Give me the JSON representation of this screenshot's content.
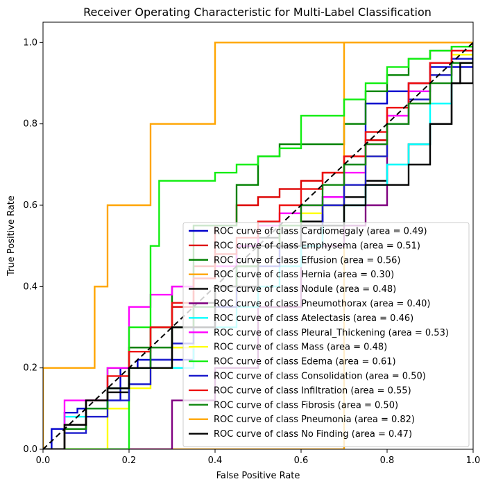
{
  "chart_data": {
    "type": "line",
    "title": "Receiver Operating Characteristic for Multi-Label Classification",
    "xlabel": "False Positive Rate",
    "ylabel": "True Positive Rate",
    "xlim": [
      0.0,
      1.0
    ],
    "ylim": [
      0.0,
      1.05
    ],
    "xticks": [
      "0.0",
      "0.2",
      "0.4",
      "0.6",
      "0.8",
      "1.0"
    ],
    "yticks": [
      "0.0",
      "0.2",
      "0.4",
      "0.6",
      "0.8",
      "1.0"
    ],
    "xtick_values": [
      0.0,
      0.2,
      0.4,
      0.6,
      0.8,
      1.0
    ],
    "ytick_values": [
      0.0,
      0.2,
      0.4,
      0.6,
      0.8,
      1.0
    ],
    "grid": false,
    "legend_position": "lower-right",
    "series": [
      {
        "name": "ROC curve of class Cardiomegaly (area = 0.49)",
        "color": "#0000cc",
        "x": [
          0,
          0.02,
          0.05,
          0.08,
          0.1,
          0.14,
          0.18,
          0.22,
          0.28,
          0.35,
          0.4,
          0.45,
          0.55,
          0.65,
          0.7,
          0.75,
          0.8,
          0.85,
          0.9,
          0.95,
          1.0
        ],
        "y": [
          0,
          0.05,
          0.09,
          0.1,
          0.12,
          0.12,
          0.2,
          0.22,
          0.22,
          0.3,
          0.4,
          0.5,
          0.55,
          0.62,
          0.7,
          0.85,
          0.88,
          0.88,
          0.94,
          0.94,
          1.0
        ]
      },
      {
        "name": "ROC curve of class Emphysema (area = 0.51)",
        "color": "#dd0000",
        "x": [
          0,
          0.05,
          0.1,
          0.15,
          0.2,
          0.25,
          0.3,
          0.35,
          0.4,
          0.45,
          0.5,
          0.55,
          0.6,
          0.65,
          0.7,
          0.75,
          0.8,
          0.85,
          0.9,
          0.95,
          1.0
        ],
        "y": [
          0,
          0.05,
          0.1,
          0.15,
          0.25,
          0.3,
          0.35,
          0.45,
          0.55,
          0.6,
          0.62,
          0.64,
          0.66,
          0.68,
          0.72,
          0.76,
          0.84,
          0.9,
          0.95,
          0.98,
          1.0
        ]
      },
      {
        "name": "ROC curve of class Effusion (area = 0.56)",
        "color": "#008000",
        "x": [
          0,
          0.05,
          0.1,
          0.15,
          0.2,
          0.25,
          0.3,
          0.35,
          0.45,
          0.5,
          0.55,
          0.6,
          0.65,
          0.7,
          0.75,
          0.8,
          0.85,
          0.9,
          0.95,
          1.0
        ],
        "y": [
          0,
          0.05,
          0.1,
          0.2,
          0.25,
          0.3,
          0.4,
          0.55,
          0.65,
          0.72,
          0.75,
          0.75,
          0.75,
          0.8,
          0.88,
          0.92,
          0.96,
          0.98,
          0.99,
          1.0
        ]
      },
      {
        "name": "ROC curve of class Hernia (area = 0.30)",
        "color": "#ffa500",
        "x": [
          0,
          0.2,
          0.4,
          0.5,
          0.6,
          0.7,
          0.7,
          0.8,
          1.0
        ],
        "y": [
          0,
          0.0,
          0.0,
          0.0,
          0.0,
          0.0,
          1.0,
          1.0,
          1.0
        ]
      },
      {
        "name": "ROC curve of class Nodule (area = 0.48)",
        "color": "#000000",
        "x": [
          0,
          0.05,
          0.1,
          0.15,
          0.2,
          0.25,
          0.3,
          0.35,
          0.4,
          0.45,
          0.5,
          0.55,
          0.6,
          0.65,
          0.7,
          0.75,
          0.8,
          0.85,
          0.9,
          0.95,
          1.0
        ],
        "y": [
          0,
          0.06,
          0.1,
          0.14,
          0.2,
          0.25,
          0.3,
          0.36,
          0.4,
          0.45,
          0.52,
          0.55,
          0.56,
          0.6,
          0.62,
          0.66,
          0.7,
          0.75,
          0.8,
          0.9,
          1.0
        ]
      },
      {
        "name": "ROC curve of class Pneumothorax (area = 0.40)",
        "color": "#800080",
        "x": [
          0,
          0.25,
          0.3,
          0.3,
          0.4,
          0.5,
          0.6,
          0.7,
          0.75,
          0.8,
          0.85,
          0.9,
          1.0
        ],
        "y": [
          0,
          0.0,
          0.0,
          0.12,
          0.2,
          0.35,
          0.5,
          0.55,
          0.6,
          0.8,
          0.9,
          0.95,
          1.0
        ]
      },
      {
        "name": "ROC curve of class Atelectasis (area = 0.46)",
        "color": "#00ffff",
        "x": [
          0,
          0.05,
          0.1,
          0.15,
          0.2,
          0.3,
          0.35,
          0.4,
          0.45,
          0.5,
          0.55,
          0.6,
          0.65,
          0.7,
          0.75,
          0.8,
          0.85,
          0.9,
          0.95,
          1.0
        ],
        "y": [
          0,
          0.08,
          0.1,
          0.15,
          0.2,
          0.2,
          0.3,
          0.3,
          0.35,
          0.4,
          0.45,
          0.5,
          0.55,
          0.6,
          0.65,
          0.7,
          0.75,
          0.85,
          0.95,
          1.0
        ]
      },
      {
        "name": "ROC curve of class Pleural_Thickening (area = 0.53)",
        "color": "#ff00ff",
        "x": [
          0,
          0.05,
          0.1,
          0.15,
          0.2,
          0.25,
          0.3,
          0.35,
          0.4,
          0.45,
          0.5,
          0.55,
          0.6,
          0.65,
          0.7,
          0.75,
          0.8,
          0.85,
          0.9,
          0.95,
          1.0
        ],
        "y": [
          0,
          0.12,
          0.12,
          0.2,
          0.35,
          0.38,
          0.4,
          0.42,
          0.45,
          0.5,
          0.55,
          0.58,
          0.6,
          0.62,
          0.68,
          0.75,
          0.82,
          0.88,
          0.92,
          0.96,
          1.0
        ]
      },
      {
        "name": "ROC curve of class Mass (area = 0.48)",
        "color": "#ffff00",
        "x": [
          0,
          0.05,
          0.1,
          0.15,
          0.2,
          0.25,
          0.3,
          0.35,
          0.4,
          0.45,
          0.5,
          0.55,
          0.6,
          0.65,
          0.7,
          0.75,
          0.8,
          0.85,
          0.9,
          0.95,
          1.0
        ],
        "y": [
          0,
          0.0,
          0.0,
          0.1,
          0.15,
          0.2,
          0.25,
          0.3,
          0.35,
          0.4,
          0.5,
          0.55,
          0.58,
          0.6,
          0.65,
          0.72,
          0.8,
          0.85,
          0.92,
          0.97,
          1.0
        ]
      },
      {
        "name": "ROC curve of class Edema (area = 0.61)",
        "color": "#11ee11",
        "x": [
          0,
          0.18,
          0.2,
          0.25,
          0.27,
          0.3,
          0.35,
          0.4,
          0.45,
          0.5,
          0.55,
          0.6,
          0.65,
          0.7,
          0.75,
          0.8,
          0.85,
          0.9,
          0.95,
          1.0
        ],
        "y": [
          0,
          0.0,
          0.3,
          0.5,
          0.66,
          0.66,
          0.66,
          0.68,
          0.7,
          0.72,
          0.74,
          0.82,
          0.82,
          0.86,
          0.9,
          0.94,
          0.96,
          0.98,
          0.99,
          1.0
        ]
      },
      {
        "name": "ROC curve of class Consolidation (area = 0.50)",
        "color": "#1c1ccc",
        "x": [
          0,
          0.05,
          0.1,
          0.15,
          0.2,
          0.25,
          0.3,
          0.35,
          0.4,
          0.45,
          0.5,
          0.55,
          0.6,
          0.65,
          0.7,
          0.75,
          0.8,
          0.85,
          0.9,
          0.95,
          1.0
        ],
        "y": [
          0,
          0.04,
          0.08,
          0.12,
          0.16,
          0.22,
          0.26,
          0.3,
          0.35,
          0.4,
          0.45,
          0.5,
          0.55,
          0.6,
          0.65,
          0.72,
          0.8,
          0.86,
          0.92,
          0.96,
          1.0
        ]
      },
      {
        "name": "ROC curve of class Infiltration (area = 0.55)",
        "color": "#ee1111",
        "x": [
          0,
          0.05,
          0.1,
          0.15,
          0.2,
          0.25,
          0.3,
          0.35,
          0.4,
          0.45,
          0.5,
          0.55,
          0.6,
          0.65,
          0.7,
          0.75,
          0.8,
          0.85,
          0.9,
          0.95,
          1.0
        ],
        "y": [
          0,
          0.06,
          0.12,
          0.18,
          0.24,
          0.3,
          0.36,
          0.42,
          0.48,
          0.52,
          0.56,
          0.6,
          0.64,
          0.68,
          0.72,
          0.78,
          0.84,
          0.9,
          0.95,
          0.98,
          1.0
        ]
      },
      {
        "name": "ROC curve of class Fibrosis (area = 0.50)",
        "color": "#118811",
        "x": [
          0,
          0.05,
          0.1,
          0.15,
          0.2,
          0.25,
          0.3,
          0.35,
          0.4,
          0.45,
          0.5,
          0.55,
          0.6,
          0.65,
          0.7,
          0.75,
          0.8,
          0.85,
          0.9,
          0.95,
          1.0
        ],
        "y": [
          0,
          0.05,
          0.1,
          0.15,
          0.2,
          0.25,
          0.3,
          0.35,
          0.4,
          0.45,
          0.5,
          0.55,
          0.6,
          0.65,
          0.7,
          0.75,
          0.8,
          0.85,
          0.9,
          0.95,
          1.0
        ]
      },
      {
        "name": "ROC curve of class Pneumonia (area = 0.82)",
        "color": "#ffa500",
        "x": [
          0,
          0,
          0.1,
          0.12,
          0.14,
          0.15,
          0.2,
          0.25,
          0.25,
          0.4,
          0.4,
          0.5,
          0.7,
          1.0
        ],
        "y": [
          0,
          0.2,
          0.2,
          0.4,
          0.4,
          0.6,
          0.6,
          0.6,
          0.8,
          0.8,
          1.0,
          1.0,
          1.0,
          1.0
        ]
      },
      {
        "name": "ROC curve of class No Finding (area = 0.47)",
        "color": "#000000",
        "x": [
          0,
          0.05,
          0.1,
          0.15,
          0.2,
          0.3,
          0.4,
          0.5,
          0.6,
          0.7,
          0.75,
          0.8,
          0.85,
          0.88,
          0.9,
          0.93,
          0.95,
          0.97,
          1.0
        ],
        "y": [
          0,
          0.06,
          0.12,
          0.15,
          0.2,
          0.3,
          0.4,
          0.5,
          0.55,
          0.6,
          0.65,
          0.65,
          0.7,
          0.7,
          0.8,
          0.8,
          0.9,
          0.95,
          1.0
        ]
      }
    ]
  }
}
